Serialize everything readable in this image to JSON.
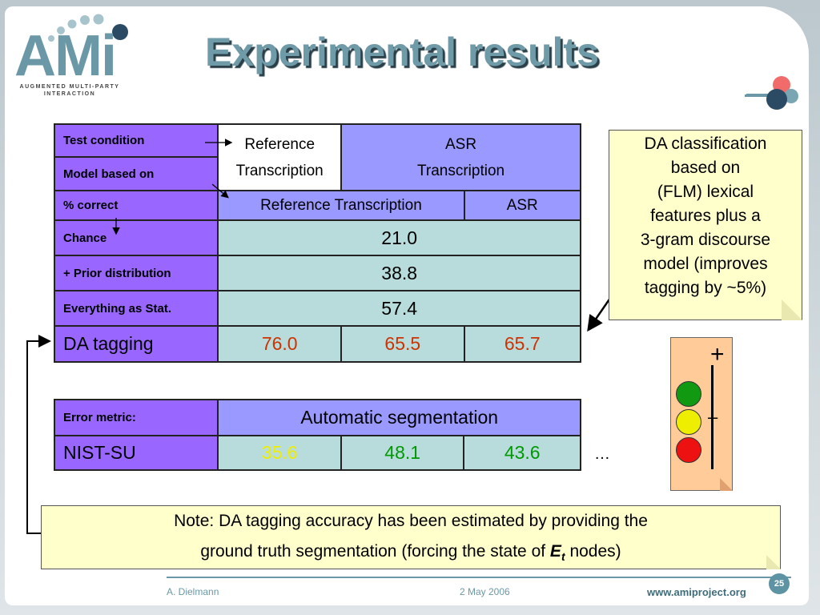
{
  "title": "Experimental results",
  "logo": {
    "text": "AMi",
    "subtitle_line1": "AUGMENTED MULTI-PARTY",
    "subtitle_line2": "INTERACTION"
  },
  "table1": {
    "row_labels": {
      "test_condition": "Test condition",
      "model_based_on": "Model based on",
      "percent_correct": "% correct",
      "chance": "Chance",
      "prior": "+ Prior distribution",
      "everything": "Everything as Stat.",
      "da_tagging": "DA tagging"
    },
    "header": {
      "ref_line1": "Reference",
      "ref_line2": "Transcription",
      "asr_line1": "ASR",
      "asr_line2": "Transcription",
      "sub_ref": "Reference Transcription",
      "sub_asr": "ASR"
    },
    "values": {
      "chance": "21.0",
      "prior": "38.8",
      "everything": "57.4",
      "da_tagging": [
        "76.0",
        "65.5",
        "65.7"
      ]
    }
  },
  "table2": {
    "label": "Error metric:",
    "header": "Automatic segmentation",
    "row_label": "NIST-SU",
    "values": [
      "35.6",
      "48.1",
      "43.6"
    ],
    "ellipsis": "…"
  },
  "da_note": [
    "DA classification",
    "based on",
    "(FLM) lexical",
    "features plus a",
    "3-gram discourse",
    "model (improves",
    "tagging by ~5%)"
  ],
  "note": {
    "line1": "Note: DA tagging accuracy has been estimated by providing the",
    "line2_a": "ground truth segmentation (forcing the state of ",
    "line2_e": "E",
    "line2_t": "t",
    "line2_b": " nodes)"
  },
  "traffic_light": {
    "plus": "+",
    "minus": "–",
    "colors": [
      "#119911",
      "#eeee00",
      "#ee1111"
    ]
  },
  "footer": {
    "author": "A. Dielmann",
    "date": "2 May 2006",
    "url": "www.amiproject.org",
    "page": "25"
  },
  "colors": {
    "accent": "#6b98a6",
    "row_header": "#9966ff",
    "col_header": "#9999ff",
    "cell": "#b8dcdc",
    "note": "#ffffcc"
  }
}
